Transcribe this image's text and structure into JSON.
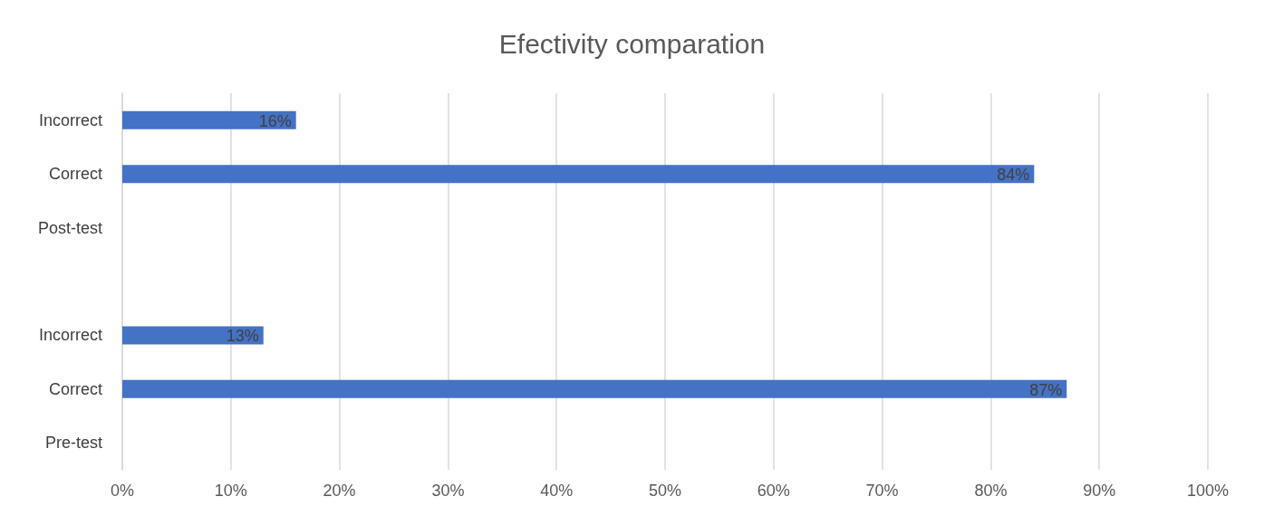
{
  "chart_data": {
    "type": "bar",
    "orientation": "horizontal",
    "title": "Efectivity comparation",
    "categories": [
      "Incorrect",
      "Correct",
      "Post-test",
      null,
      "Incorrect",
      "Correct",
      "Pre-test"
    ],
    "values": [
      16,
      84,
      null,
      null,
      13,
      87,
      null
    ],
    "value_labels": [
      "16%",
      "84%",
      null,
      null,
      "13%",
      "87%",
      null
    ],
    "color": "#4472c4",
    "xlim": [
      0,
      100
    ],
    "xticks": [
      {
        "value": 0,
        "label": "0%"
      },
      {
        "value": 10,
        "label": "10%"
      },
      {
        "value": 20,
        "label": "20%"
      },
      {
        "value": 30,
        "label": "30%"
      },
      {
        "value": 40,
        "label": "40%"
      },
      {
        "value": 50,
        "label": "50%"
      },
      {
        "value": 60,
        "label": "60%"
      },
      {
        "value": 70,
        "label": "70%"
      },
      {
        "value": 80,
        "label": "80%"
      },
      {
        "value": 90,
        "label": "90%"
      },
      {
        "value": 100,
        "label": "100%"
      }
    ],
    "grid": "x"
  }
}
